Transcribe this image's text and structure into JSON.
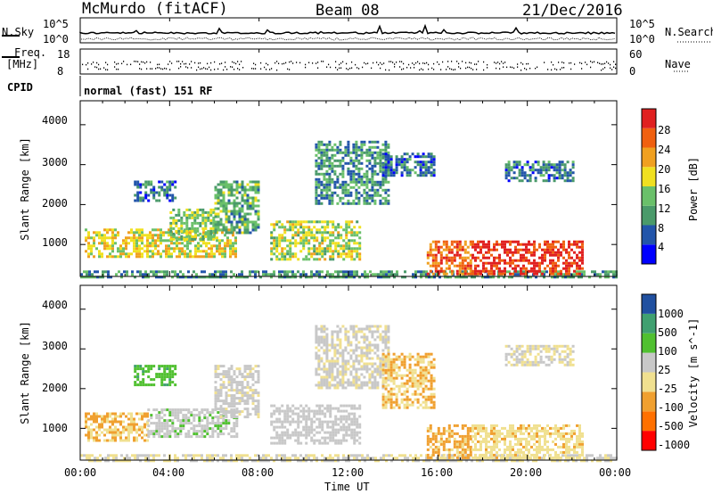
{
  "header": {
    "station": "McMurdo (fitACF)",
    "beam": "Beam 08",
    "date": "21/Dec/2016"
  },
  "noise_panel": {
    "left_label": "N.Sky",
    "right_label": "N.Search",
    "left_ticks": [
      "10^5",
      "10^0"
    ],
    "right_ticks": [
      "10^5",
      "10^0"
    ]
  },
  "freq_panel": {
    "left_label_line1": "Freq.",
    "left_label_line2": "[MHz]",
    "right_label": "Nave",
    "left_ticks": [
      "18",
      "8"
    ],
    "right_ticks": [
      "60",
      "0"
    ]
  },
  "cpid": {
    "label": "CPID",
    "value": "normal (fast) 151 RF"
  },
  "x_axis": {
    "label": "Time UT",
    "ticks": [
      "00:00",
      "04:00",
      "08:00",
      "12:00",
      "16:00",
      "20:00",
      "00:00"
    ]
  },
  "colors": {
    "power": [
      "#0000ff",
      "#2255aa",
      "#4a9a6a",
      "#6ac06a",
      "#f0e020",
      "#f0a020",
      "#f06010",
      "#e02020"
    ],
    "velocity": [
      "#ff0000",
      "#ff7000",
      "#f0a030",
      "#f0e090",
      "#c8c8c8",
      "#50c030",
      "#40a070",
      "#2050a0"
    ]
  },
  "chart_data": [
    {
      "type": "heatmap",
      "name": "power-panel",
      "xlabel": "",
      "ylabel": "Slant Range [km]",
      "y_ticks": [
        "1000",
        "2000",
        "3000",
        "4000"
      ],
      "ylim": [
        200,
        4600
      ],
      "xlim": [
        0,
        24
      ],
      "colorbar": {
        "label": "Power [dB]",
        "ticks": [
          "4",
          "8",
          "12",
          "16",
          "20",
          "24",
          "28"
        ],
        "range": [
          0,
          32
        ]
      },
      "regions": [
        {
          "t0": 0.0,
          "t1": 24.0,
          "r0": 200,
          "r1": 350,
          "value": 10
        },
        {
          "t0": 0.2,
          "t1": 7.0,
          "r0": 700,
          "r1": 1400,
          "value": 18
        },
        {
          "t0": 4.0,
          "t1": 6.0,
          "r0": 1100,
          "r1": 1900,
          "value": 14
        },
        {
          "t0": 2.4,
          "t1": 4.2,
          "r0": 2100,
          "r1": 2600,
          "value": 8
        },
        {
          "t0": 6.0,
          "t1": 8.0,
          "r0": 1300,
          "r1": 2600,
          "value": 12
        },
        {
          "t0": 8.5,
          "t1": 12.5,
          "r0": 600,
          "r1": 1600,
          "value": 16
        },
        {
          "t0": 10.5,
          "t1": 13.8,
          "r0": 2000,
          "r1": 3600,
          "value": 10
        },
        {
          "t0": 13.5,
          "t1": 15.8,
          "r0": 2700,
          "r1": 3300,
          "value": 8
        },
        {
          "t0": 15.5,
          "t1": 17.5,
          "r0": 250,
          "r1": 1100,
          "value": 26
        },
        {
          "t0": 17.5,
          "t1": 22.5,
          "r0": 250,
          "r1": 1100,
          "value": 29
        },
        {
          "t0": 19.0,
          "t1": 22.0,
          "r0": 2600,
          "r1": 3100,
          "value": 8
        }
      ]
    },
    {
      "type": "heatmap",
      "name": "velocity-panel",
      "xlabel": "Time UT",
      "ylabel": "Slant Range [km]",
      "y_ticks": [
        "1000",
        "2000",
        "3000",
        "4000"
      ],
      "ylim": [
        200,
        4600
      ],
      "xlim": [
        0,
        24
      ],
      "colorbar": {
        "label": "Velocity [m s^-1]",
        "ticks": [
          "-1000",
          "-500",
          "-100",
          "-25",
          "25",
          "100",
          "500",
          "1000"
        ],
        "range": [
          -1200,
          1200
        ]
      },
      "regions": [
        {
          "t0": 0.0,
          "t1": 24.0,
          "r0": 200,
          "r1": 350,
          "value": 0
        },
        {
          "t0": 0.2,
          "t1": 3.0,
          "r0": 700,
          "r1": 1400,
          "value": -300
        },
        {
          "t0": 3.0,
          "t1": 7.0,
          "r0": 800,
          "r1": 1500,
          "value": 200
        },
        {
          "t0": 2.4,
          "t1": 4.2,
          "r0": 2100,
          "r1": 2600,
          "value": 500
        },
        {
          "t0": 6.0,
          "t1": 8.0,
          "r0": 1300,
          "r1": 2600,
          "value": 100
        },
        {
          "t0": 8.5,
          "t1": 12.5,
          "r0": 600,
          "r1": 1600,
          "value": 150
        },
        {
          "t0": 10.5,
          "t1": 13.8,
          "r0": 2000,
          "r1": 3600,
          "value": 50
        },
        {
          "t0": 13.5,
          "t1": 15.8,
          "r0": 1500,
          "r1": 2900,
          "value": -300
        },
        {
          "t0": 15.5,
          "t1": 17.5,
          "r0": 250,
          "r1": 1100,
          "value": -400
        },
        {
          "t0": 17.5,
          "t1": 22.5,
          "r0": 250,
          "r1": 1100,
          "value": -200
        },
        {
          "t0": 19.0,
          "t1": 22.0,
          "r0": 2600,
          "r1": 3100,
          "value": 0
        }
      ]
    }
  ]
}
